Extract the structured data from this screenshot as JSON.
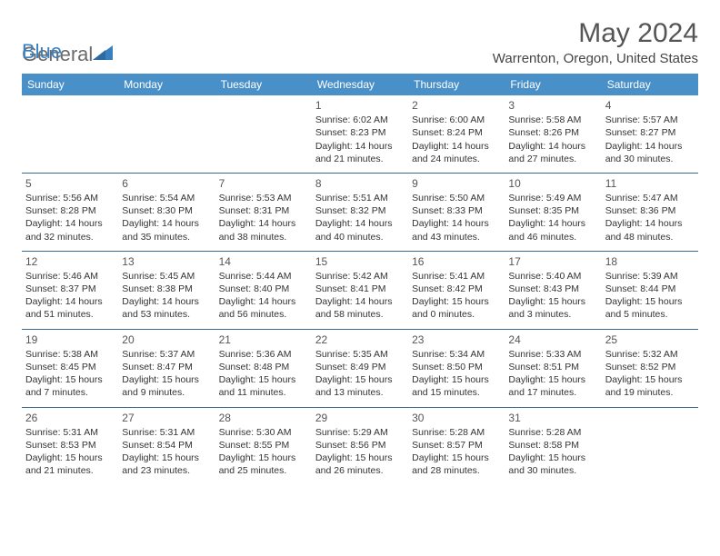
{
  "logo": {
    "word1": "General",
    "word2": "Blue"
  },
  "title": "May 2024",
  "location": "Warrenton, Oregon, United States",
  "colors": {
    "header_bg": "#4a90c8",
    "header_text": "#ffffff",
    "row_border": "#3a6a8f",
    "body_text": "#333333",
    "title_text": "#555555",
    "logo_gray": "#6b6b6b",
    "logo_blue": "#3a7fbf"
  },
  "dayNames": [
    "Sunday",
    "Monday",
    "Tuesday",
    "Wednesday",
    "Thursday",
    "Friday",
    "Saturday"
  ],
  "weeks": [
    [
      null,
      null,
      null,
      {
        "n": "1",
        "sr": "6:02 AM",
        "ss": "8:23 PM",
        "dl": "14 hours and 21 minutes."
      },
      {
        "n": "2",
        "sr": "6:00 AM",
        "ss": "8:24 PM",
        "dl": "14 hours and 24 minutes."
      },
      {
        "n": "3",
        "sr": "5:58 AM",
        "ss": "8:26 PM",
        "dl": "14 hours and 27 minutes."
      },
      {
        "n": "4",
        "sr": "5:57 AM",
        "ss": "8:27 PM",
        "dl": "14 hours and 30 minutes."
      }
    ],
    [
      {
        "n": "5",
        "sr": "5:56 AM",
        "ss": "8:28 PM",
        "dl": "14 hours and 32 minutes."
      },
      {
        "n": "6",
        "sr": "5:54 AM",
        "ss": "8:30 PM",
        "dl": "14 hours and 35 minutes."
      },
      {
        "n": "7",
        "sr": "5:53 AM",
        "ss": "8:31 PM",
        "dl": "14 hours and 38 minutes."
      },
      {
        "n": "8",
        "sr": "5:51 AM",
        "ss": "8:32 PM",
        "dl": "14 hours and 40 minutes."
      },
      {
        "n": "9",
        "sr": "5:50 AM",
        "ss": "8:33 PM",
        "dl": "14 hours and 43 minutes."
      },
      {
        "n": "10",
        "sr": "5:49 AM",
        "ss": "8:35 PM",
        "dl": "14 hours and 46 minutes."
      },
      {
        "n": "11",
        "sr": "5:47 AM",
        "ss": "8:36 PM",
        "dl": "14 hours and 48 minutes."
      }
    ],
    [
      {
        "n": "12",
        "sr": "5:46 AM",
        "ss": "8:37 PM",
        "dl": "14 hours and 51 minutes."
      },
      {
        "n": "13",
        "sr": "5:45 AM",
        "ss": "8:38 PM",
        "dl": "14 hours and 53 minutes."
      },
      {
        "n": "14",
        "sr": "5:44 AM",
        "ss": "8:40 PM",
        "dl": "14 hours and 56 minutes."
      },
      {
        "n": "15",
        "sr": "5:42 AM",
        "ss": "8:41 PM",
        "dl": "14 hours and 58 minutes."
      },
      {
        "n": "16",
        "sr": "5:41 AM",
        "ss": "8:42 PM",
        "dl": "15 hours and 0 minutes."
      },
      {
        "n": "17",
        "sr": "5:40 AM",
        "ss": "8:43 PM",
        "dl": "15 hours and 3 minutes."
      },
      {
        "n": "18",
        "sr": "5:39 AM",
        "ss": "8:44 PM",
        "dl": "15 hours and 5 minutes."
      }
    ],
    [
      {
        "n": "19",
        "sr": "5:38 AM",
        "ss": "8:45 PM",
        "dl": "15 hours and 7 minutes."
      },
      {
        "n": "20",
        "sr": "5:37 AM",
        "ss": "8:47 PM",
        "dl": "15 hours and 9 minutes."
      },
      {
        "n": "21",
        "sr": "5:36 AM",
        "ss": "8:48 PM",
        "dl": "15 hours and 11 minutes."
      },
      {
        "n": "22",
        "sr": "5:35 AM",
        "ss": "8:49 PM",
        "dl": "15 hours and 13 minutes."
      },
      {
        "n": "23",
        "sr": "5:34 AM",
        "ss": "8:50 PM",
        "dl": "15 hours and 15 minutes."
      },
      {
        "n": "24",
        "sr": "5:33 AM",
        "ss": "8:51 PM",
        "dl": "15 hours and 17 minutes."
      },
      {
        "n": "25",
        "sr": "5:32 AM",
        "ss": "8:52 PM",
        "dl": "15 hours and 19 minutes."
      }
    ],
    [
      {
        "n": "26",
        "sr": "5:31 AM",
        "ss": "8:53 PM",
        "dl": "15 hours and 21 minutes."
      },
      {
        "n": "27",
        "sr": "5:31 AM",
        "ss": "8:54 PM",
        "dl": "15 hours and 23 minutes."
      },
      {
        "n": "28",
        "sr": "5:30 AM",
        "ss": "8:55 PM",
        "dl": "15 hours and 25 minutes."
      },
      {
        "n": "29",
        "sr": "5:29 AM",
        "ss": "8:56 PM",
        "dl": "15 hours and 26 minutes."
      },
      {
        "n": "30",
        "sr": "5:28 AM",
        "ss": "8:57 PM",
        "dl": "15 hours and 28 minutes."
      },
      {
        "n": "31",
        "sr": "5:28 AM",
        "ss": "8:58 PM",
        "dl": "15 hours and 30 minutes."
      },
      null
    ]
  ],
  "labels": {
    "sunrise": "Sunrise:",
    "sunset": "Sunset:",
    "daylight": "Daylight:"
  }
}
